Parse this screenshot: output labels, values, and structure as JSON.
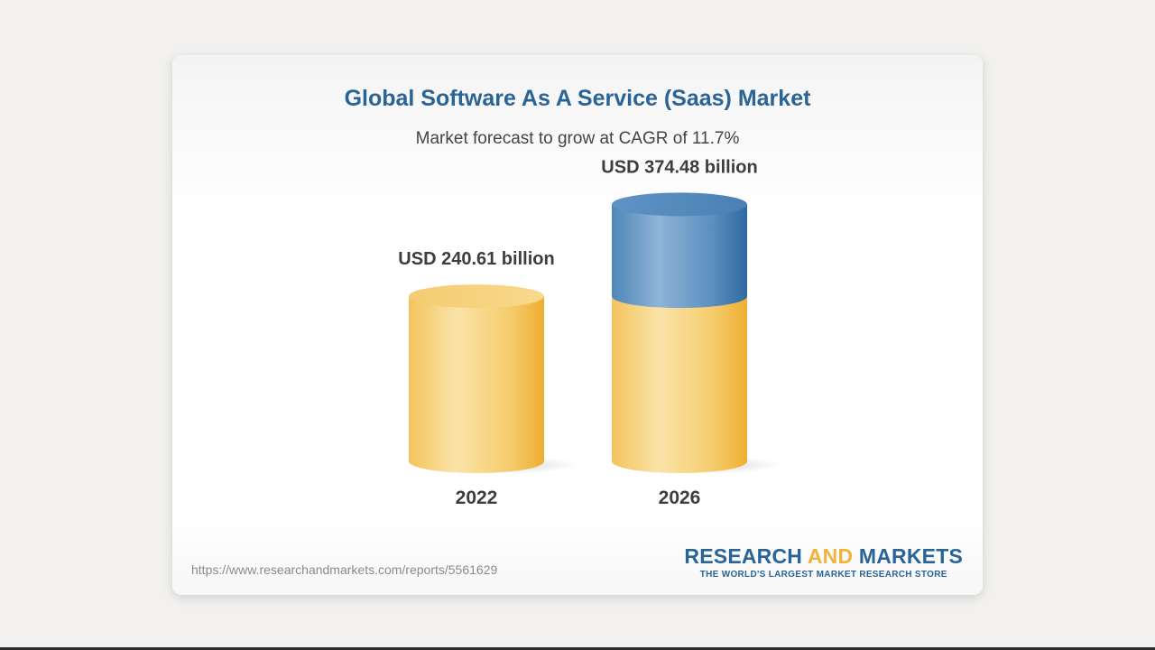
{
  "chart_data": {
    "type": "bar",
    "title": "Global Software As A Service (Saas) Market",
    "subtitle": "Market forecast to grow at CAGR of 11.7%",
    "categories": [
      "2022",
      "2026"
    ],
    "values": [
      240.61,
      374.48
    ],
    "value_labels": [
      "USD 240.61 billion",
      "USD 374.48 billion"
    ],
    "unit": "USD billion",
    "base_value": 240.61,
    "colors": {
      "base": "#f0b43c",
      "growth": "#3a78b0",
      "title": "#2a6496"
    }
  },
  "footer": {
    "url": "https://www.researchandmarkets.com/reports/5561629"
  },
  "logo": {
    "word1": "RESEARCH ",
    "word2": "AND",
    "word3": " MARKETS",
    "tagline": "THE WORLD'S LARGEST MARKET RESEARCH STORE"
  }
}
